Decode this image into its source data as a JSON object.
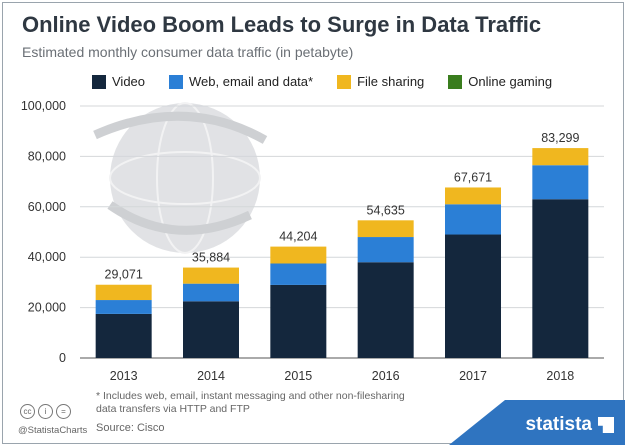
{
  "header": {
    "title": "Online Video Boom Leads to Surge in Data Traffic",
    "subtitle": "Estimated monthly consumer data traffic (in petabyte)"
  },
  "legend": [
    {
      "label": "Video",
      "color": "#14273d"
    },
    {
      "label": "Web, email and data*",
      "color": "#2b7fd6"
    },
    {
      "label": "File sharing",
      "color": "#f0b71f"
    },
    {
      "label": "Online gaming",
      "color": "#3a7d1e"
    }
  ],
  "chart_data": {
    "type": "bar",
    "stacked": true,
    "title": "Online Video Boom Leads to Surge in Data Traffic",
    "subtitle": "Estimated monthly consumer data traffic (in petabyte)",
    "categories": [
      "2013",
      "2014",
      "2015",
      "2016",
      "2017",
      "2018"
    ],
    "series": [
      {
        "name": "Video",
        "color": "#14273d",
        "values": [
          17500,
          22500,
          29000,
          38000,
          49000,
          63000
        ]
      },
      {
        "name": "Web, email and data*",
        "color": "#2b7fd6",
        "values": [
          5500,
          7000,
          8500,
          10000,
          12000,
          13500
        ]
      },
      {
        "name": "File sharing",
        "color": "#f0b71f",
        "values": [
          6071,
          6384,
          6704,
          6635,
          6671,
          6799
        ]
      },
      {
        "name": "Online gaming",
        "color": "#3a7d1e",
        "values": [
          0,
          0,
          0,
          0,
          0,
          0
        ]
      }
    ],
    "totals": [
      29071,
      35884,
      44204,
      54635,
      67671,
      83299
    ],
    "total_labels": [
      "29,071",
      "35,884",
      "44,204",
      "54,635",
      "67,671",
      "83,299"
    ],
    "yticks": [
      0,
      20000,
      40000,
      60000,
      80000,
      100000
    ],
    "ytick_labels": [
      "0",
      "20,000",
      "40,000",
      "60,000",
      "80,000",
      "100,000"
    ],
    "ylim": [
      0,
      100000
    ],
    "xlabel": "",
    "ylabel": "",
    "grid": true
  },
  "footer": {
    "footnote": "* Includes web, email, instant messaging and other non-filesharing data transfers via HTTP and FTP",
    "source": "Source: Cisco",
    "handle": "@StatistaCharts",
    "brand": "statista",
    "cc_icons": [
      "cc",
      "i",
      "="
    ]
  }
}
